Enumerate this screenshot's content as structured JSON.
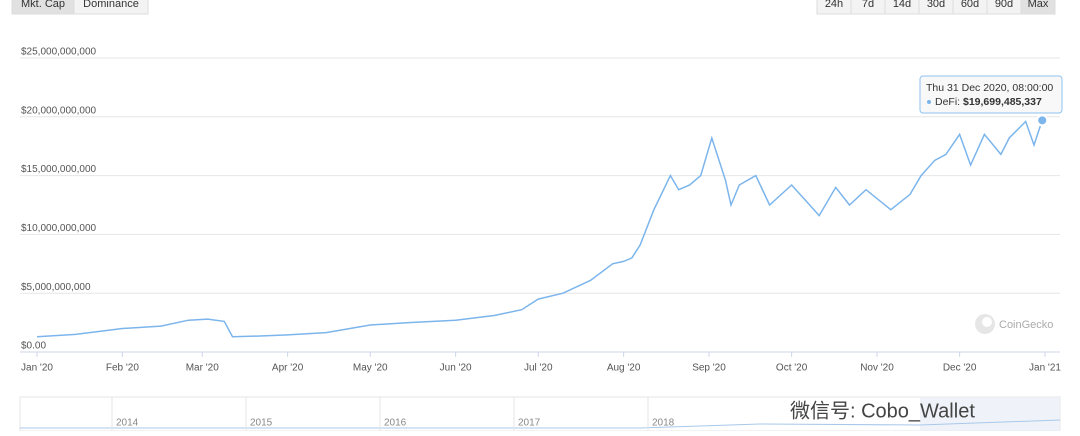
{
  "chart_data": {
    "type": "line",
    "buttons": [
      "Mkt. Cap",
      "Dominance"
    ],
    "active_button": 0,
    "ranges": [
      "24h",
      "7d",
      "14d",
      "30d",
      "60d",
      "90d",
      "Max"
    ],
    "active_range": 6,
    "color": "#7cb5ec",
    "grid": true,
    "xlim": [
      0,
      366
    ],
    "xticks": [
      {
        "value": 0,
        "label": "Jan '20"
      },
      {
        "value": 31,
        "label": "Feb '20"
      },
      {
        "value": 60,
        "label": "Mar '20"
      },
      {
        "value": 91,
        "label": "Apr '20"
      },
      {
        "value": 121,
        "label": "May '20"
      },
      {
        "value": 152,
        "label": "Jun '20"
      },
      {
        "value": 182,
        "label": "Jul '20"
      },
      {
        "value": 213,
        "label": "Aug '20"
      },
      {
        "value": 244,
        "label": "Sep '20"
      },
      {
        "value": 274,
        "label": "Oct '20"
      },
      {
        "value": 305,
        "label": "Nov '20"
      },
      {
        "value": 335,
        "label": "Dec '20"
      },
      {
        "value": 366,
        "label": "Jan '21"
      }
    ],
    "ylim": [
      0,
      25000000000
    ],
    "yticks": [
      {
        "value": 0,
        "label": "$0.00"
      },
      {
        "value": 5000000000,
        "label": "$5,000,000,000"
      },
      {
        "value": 10000000000,
        "label": "$10,000,000,000"
      },
      {
        "value": 15000000000,
        "label": "$15,000,000,000"
      },
      {
        "value": 20000000000,
        "label": "$20,000,000,000"
      },
      {
        "value": 25000000000,
        "label": "$25,000,000,000"
      }
    ],
    "x": [
      0,
      14,
      31,
      45,
      55,
      62,
      68,
      71,
      80,
      91,
      105,
      121,
      135,
      152,
      166,
      176,
      182,
      191,
      201,
      209,
      213,
      216,
      219,
      224,
      230,
      233,
      237,
      241,
      245,
      250,
      252,
      255,
      261,
      266,
      274,
      279,
      284,
      290,
      295,
      301,
      310,
      317,
      321,
      326,
      330,
      335,
      339,
      344,
      350,
      353,
      359,
      362,
      365
    ],
    "values": [
      1300000000,
      1500000000,
      2000000000,
      2200000000,
      2700000000,
      2800000000,
      2600000000,
      1300000000,
      1350000000,
      1450000000,
      1650000000,
      2300000000,
      2500000000,
      2700000000,
      3100000000,
      3600000000,
      4500000000,
      5000000000,
      6100000000,
      7500000000,
      7700000000,
      8000000000,
      9100000000,
      12100000000,
      15000000000,
      13800000000,
      14200000000,
      15000000000,
      18200000000,
      14600000000,
      12500000000,
      14200000000,
      15000000000,
      12500000000,
      14200000000,
      12900000000,
      11600000000,
      14000000000,
      12500000000,
      13800000000,
      12100000000,
      13400000000,
      15000000000,
      16300000000,
      16800000000,
      18500000000,
      15900000000,
      18500000000,
      16800000000,
      18200000000,
      19600000000,
      17600000000,
      19699485337
    ],
    "tooltip": {
      "date": "Thu 31 Dec 2020, 08:00:00",
      "label": "DeFi:",
      "value": "$19,699,485,337"
    },
    "watermark": "CoinGecko",
    "navigator_labels": [
      "2014",
      "2015",
      "2016",
      "2017",
      "2018"
    ],
    "overlay": "微信号: Cobo_Wallet"
  }
}
